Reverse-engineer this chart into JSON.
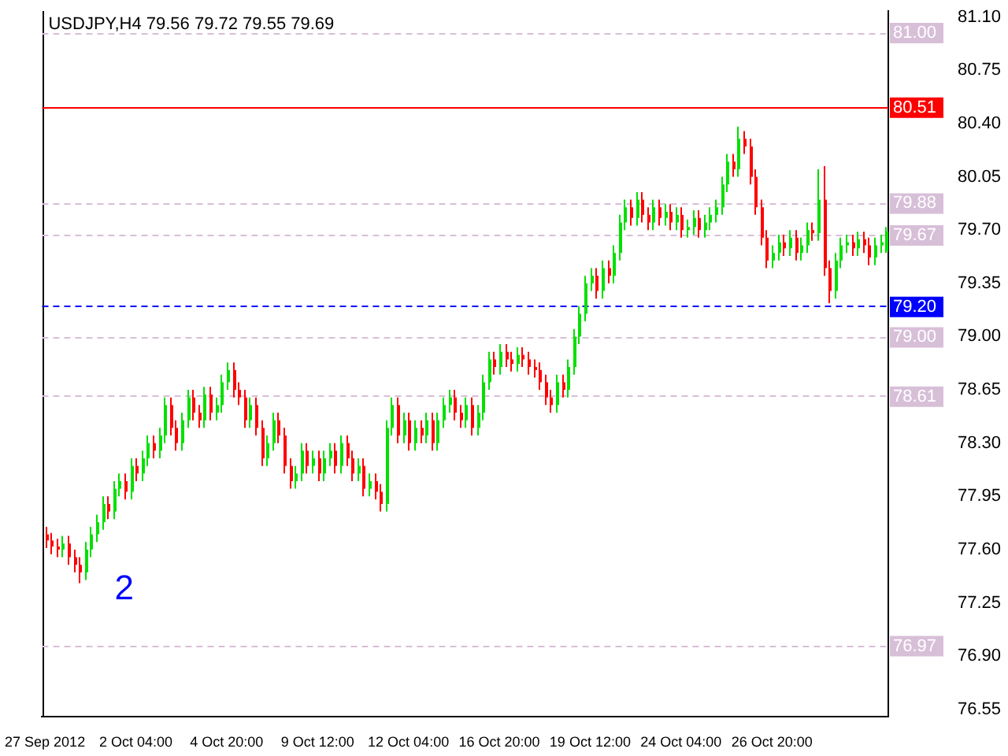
{
  "chart_data": {
    "type": "candlestick",
    "title": "USDJPY,H4 79.56 79.72 79.55 79.69",
    "annotations": [
      "2"
    ],
    "categories": [
      "27 Sep 2012",
      null,
      null,
      null,
      null,
      null,
      null,
      null,
      null,
      null,
      null,
      null,
      null,
      null,
      null,
      null,
      "2 Oct 04:00",
      null,
      null,
      null,
      null,
      null,
      null,
      null,
      null,
      null,
      null,
      null,
      null,
      null,
      null,
      null,
      "4 Oct 20:00",
      null,
      null,
      null,
      null,
      null,
      null,
      null,
      null,
      null,
      null,
      null,
      null,
      null,
      null,
      null,
      "9 Oct 12:00",
      null,
      null,
      null,
      null,
      null,
      null,
      null,
      null,
      null,
      null,
      null,
      null,
      null,
      null,
      null,
      "12 Oct 04:00",
      null,
      null,
      null,
      null,
      null,
      null,
      null,
      null,
      null,
      null,
      null,
      null,
      null,
      null,
      null,
      "16 Oct 20:00",
      null,
      null,
      null,
      null,
      null,
      null,
      null,
      null,
      null,
      null,
      null,
      null,
      null,
      null,
      null,
      "19 Oct 12:00",
      null,
      null,
      null,
      null,
      null,
      null,
      null,
      null,
      null,
      null,
      null,
      null,
      null,
      null,
      null,
      "24 Oct 04:00",
      null,
      null,
      null,
      null,
      null,
      null,
      null,
      null,
      null,
      null,
      null,
      null,
      null,
      null,
      null,
      "26 Oct 20:00",
      null,
      null,
      null,
      null,
      null,
      null,
      null,
      null,
      null,
      null,
      null,
      null,
      null,
      null,
      null,
      null,
      null,
      null,
      null,
      null
    ],
    "ohlc": [
      [
        77.7,
        77.75,
        77.61,
        77.66
      ],
      [
        77.66,
        77.71,
        77.57,
        77.62
      ],
      [
        77.62,
        77.67,
        77.55,
        77.6
      ],
      [
        77.6,
        77.69,
        77.55,
        77.64
      ],
      [
        77.64,
        77.69,
        77.5,
        77.55
      ],
      [
        77.55,
        77.6,
        77.45,
        77.5
      ],
      [
        77.5,
        77.55,
        77.38,
        77.45
      ],
      [
        77.45,
        77.65,
        77.4,
        77.6
      ],
      [
        77.6,
        77.75,
        77.55,
        77.7
      ],
      [
        77.7,
        77.83,
        77.65,
        77.78
      ],
      [
        77.78,
        77.95,
        77.73,
        77.9
      ],
      [
        77.9,
        77.95,
        77.8,
        77.85
      ],
      [
        77.85,
        78.05,
        77.8,
        78.0
      ],
      [
        78.0,
        78.1,
        77.95,
        78.05
      ],
      [
        78.05,
        78.1,
        77.93,
        77.98
      ],
      [
        77.98,
        78.2,
        77.93,
        78.15
      ],
      [
        78.15,
        78.2,
        78.05,
        78.1
      ],
      [
        78.1,
        78.25,
        78.05,
        78.2
      ],
      [
        78.2,
        78.35,
        78.15,
        78.3
      ],
      [
        78.3,
        78.35,
        78.2,
        78.25
      ],
      [
        78.25,
        78.4,
        78.2,
        78.35
      ],
      [
        78.35,
        78.6,
        78.3,
        78.55
      ],
      [
        78.55,
        78.6,
        78.35,
        78.4
      ],
      [
        78.4,
        78.45,
        78.25,
        78.3
      ],
      [
        78.3,
        78.5,
        78.25,
        78.45
      ],
      [
        78.45,
        78.65,
        78.4,
        78.6
      ],
      [
        78.6,
        78.65,
        78.45,
        78.5
      ],
      [
        78.5,
        78.55,
        78.4,
        78.45
      ],
      [
        78.45,
        78.67,
        78.4,
        78.62
      ],
      [
        78.62,
        78.67,
        78.45,
        78.5
      ],
      [
        78.5,
        78.6,
        78.45,
        78.55
      ],
      [
        78.55,
        78.75,
        78.5,
        78.7
      ],
      [
        78.7,
        78.83,
        78.65,
        78.78
      ],
      [
        78.78,
        78.83,
        78.6,
        78.65
      ],
      [
        78.65,
        78.7,
        78.55,
        78.6
      ],
      [
        78.6,
        78.65,
        78.4,
        78.45
      ],
      [
        78.45,
        78.6,
        78.4,
        78.55
      ],
      [
        78.55,
        78.6,
        78.35,
        78.4
      ],
      [
        78.4,
        78.45,
        78.15,
        78.2
      ],
      [
        78.2,
        78.35,
        78.15,
        78.3
      ],
      [
        78.3,
        78.5,
        78.25,
        78.45
      ],
      [
        78.45,
        78.5,
        78.3,
        78.35
      ],
      [
        78.35,
        78.4,
        78.1,
        78.15
      ],
      [
        78.15,
        78.2,
        78.0,
        78.05
      ],
      [
        78.05,
        78.15,
        78.0,
        78.1
      ],
      [
        78.1,
        78.3,
        78.05,
        78.25
      ],
      [
        78.25,
        78.3,
        78.1,
        78.15
      ],
      [
        78.15,
        78.25,
        78.1,
        78.2
      ],
      [
        78.2,
        78.25,
        78.05,
        78.1
      ],
      [
        78.1,
        78.25,
        78.05,
        78.2
      ],
      [
        78.2,
        78.3,
        78.15,
        78.25
      ],
      [
        78.25,
        78.3,
        78.1,
        78.15
      ],
      [
        78.15,
        78.35,
        78.1,
        78.3
      ],
      [
        78.3,
        78.35,
        78.15,
        78.2
      ],
      [
        78.2,
        78.25,
        78.05,
        78.1
      ],
      [
        78.1,
        78.2,
        78.05,
        78.15
      ],
      [
        78.15,
        78.2,
        77.95,
        78.0
      ],
      [
        78.0,
        78.1,
        77.95,
        78.05
      ],
      [
        78.05,
        78.1,
        77.93,
        77.98
      ],
      [
        77.98,
        78.03,
        77.85,
        77.9
      ],
      [
        77.9,
        78.45,
        77.85,
        78.4
      ],
      [
        78.4,
        78.6,
        78.35,
        78.55
      ],
      [
        78.55,
        78.6,
        78.3,
        78.35
      ],
      [
        78.35,
        78.5,
        78.3,
        78.45
      ],
      [
        78.45,
        78.5,
        78.25,
        78.3
      ],
      [
        78.3,
        78.45,
        78.25,
        78.4
      ],
      [
        78.4,
        78.45,
        78.3,
        78.35
      ],
      [
        78.35,
        78.5,
        78.3,
        78.45
      ],
      [
        78.45,
        78.5,
        78.25,
        78.3
      ],
      [
        78.3,
        78.5,
        78.25,
        78.45
      ],
      [
        78.45,
        78.6,
        78.4,
        78.55
      ],
      [
        78.55,
        78.65,
        78.5,
        78.6
      ],
      [
        78.6,
        78.65,
        78.45,
        78.5
      ],
      [
        78.5,
        78.55,
        78.4,
        78.45
      ],
      [
        78.45,
        78.6,
        78.4,
        78.55
      ],
      [
        78.55,
        78.6,
        78.35,
        78.4
      ],
      [
        78.4,
        78.55,
        78.35,
        78.5
      ],
      [
        78.5,
        78.75,
        78.45,
        78.7
      ],
      [
        78.7,
        78.9,
        78.65,
        78.85
      ],
      [
        78.85,
        78.9,
        78.75,
        78.8
      ],
      [
        78.8,
        78.95,
        78.75,
        78.9
      ],
      [
        78.9,
        78.95,
        78.8,
        78.85
      ],
      [
        78.85,
        78.9,
        78.77,
        78.82
      ],
      [
        78.82,
        78.93,
        78.77,
        78.88
      ],
      [
        78.88,
        78.93,
        78.8,
        78.85
      ],
      [
        78.85,
        78.9,
        78.75,
        78.8
      ],
      [
        78.8,
        78.85,
        78.73,
        78.78
      ],
      [
        78.78,
        78.83,
        78.65,
        78.7
      ],
      [
        78.7,
        78.75,
        78.55,
        78.6
      ],
      [
        78.6,
        78.65,
        78.5,
        78.55
      ],
      [
        78.55,
        78.75,
        78.5,
        78.7
      ],
      [
        78.7,
        78.75,
        78.6,
        78.65
      ],
      [
        78.65,
        78.85,
        78.6,
        78.8
      ],
      [
        78.8,
        79.05,
        78.75,
        79.0
      ],
      [
        79.0,
        79.2,
        78.95,
        79.15
      ],
      [
        79.15,
        79.4,
        79.1,
        79.35
      ],
      [
        79.35,
        79.45,
        79.3,
        79.4
      ],
      [
        79.4,
        79.45,
        79.25,
        79.3
      ],
      [
        79.3,
        79.5,
        79.25,
        79.45
      ],
      [
        79.45,
        79.5,
        79.35,
        79.4
      ],
      [
        79.4,
        79.6,
        79.35,
        79.55
      ],
      [
        79.55,
        79.8,
        79.5,
        79.75
      ],
      [
        79.75,
        79.9,
        79.7,
        79.85
      ],
      [
        79.85,
        79.9,
        79.73,
        79.78
      ],
      [
        79.78,
        79.95,
        79.73,
        79.9
      ],
      [
        79.9,
        79.95,
        79.75,
        79.8
      ],
      [
        79.8,
        79.85,
        79.7,
        79.75
      ],
      [
        79.75,
        79.9,
        79.7,
        79.85
      ],
      [
        79.85,
        79.9,
        79.73,
        79.78
      ],
      [
        79.78,
        79.87,
        79.73,
        79.82
      ],
      [
        79.82,
        79.87,
        79.7,
        79.75
      ],
      [
        79.75,
        79.85,
        79.7,
        79.8
      ],
      [
        79.8,
        79.85,
        79.65,
        79.7
      ],
      [
        79.7,
        79.77,
        79.65,
        79.72
      ],
      [
        79.72,
        79.83,
        79.67,
        79.78
      ],
      [
        79.78,
        79.83,
        79.65,
        79.7
      ],
      [
        79.7,
        79.8,
        79.65,
        79.75
      ],
      [
        79.75,
        79.85,
        79.7,
        79.8
      ],
      [
        79.8,
        79.9,
        79.75,
        79.85
      ],
      [
        79.85,
        80.05,
        79.8,
        80.0
      ],
      [
        80.0,
        80.2,
        79.95,
        80.15
      ],
      [
        80.15,
        80.2,
        80.05,
        80.1
      ],
      [
        80.1,
        80.38,
        80.05,
        80.3
      ],
      [
        80.3,
        80.35,
        80.2,
        80.25
      ],
      [
        80.25,
        80.3,
        80.0,
        80.05
      ],
      [
        80.05,
        80.1,
        79.8,
        79.85
      ],
      [
        79.85,
        79.9,
        79.6,
        79.65
      ],
      [
        79.65,
        79.7,
        79.45,
        79.5
      ],
      [
        79.5,
        79.6,
        79.45,
        79.55
      ],
      [
        79.55,
        79.67,
        79.5,
        79.62
      ],
      [
        79.62,
        79.67,
        79.53,
        79.58
      ],
      [
        79.58,
        79.7,
        79.53,
        79.65
      ],
      [
        79.65,
        79.7,
        79.5,
        79.55
      ],
      [
        79.55,
        79.65,
        79.5,
        79.6
      ],
      [
        79.6,
        79.75,
        79.55,
        79.7
      ],
      [
        79.7,
        79.75,
        79.63,
        79.68
      ],
      [
        79.68,
        80.1,
        79.63,
        79.9
      ],
      [
        79.9,
        80.12,
        79.4,
        79.45
      ],
      [
        79.45,
        79.5,
        79.22,
        79.3
      ],
      [
        79.3,
        79.55,
        79.25,
        79.5
      ],
      [
        79.5,
        79.65,
        79.45,
        79.6
      ],
      [
        79.6,
        79.67,
        79.55,
        79.62
      ],
      [
        79.62,
        79.67,
        79.53,
        79.58
      ],
      [
        79.58,
        79.69,
        79.53,
        79.64
      ],
      [
        79.64,
        79.69,
        79.55,
        79.6
      ],
      [
        79.6,
        79.65,
        79.47,
        79.52
      ],
      [
        79.52,
        79.65,
        79.47,
        79.6
      ],
      [
        79.6,
        79.67,
        79.55,
        79.62
      ],
      [
        79.56,
        79.72,
        79.55,
        79.69
      ]
    ],
    "ylim": [
      76.5,
      81.14
    ],
    "yticks": [
      76.55,
      {
        "value": 76.9,
        "label": "76.90"
      },
      77.25,
      {
        "value": 77.6,
        "label": "77.60"
      },
      77.95,
      {
        "value": 78.3,
        "label": "78.30"
      },
      78.65,
      {
        "value": 79.0,
        "label": "79.00"
      },
      79.35,
      {
        "value": 79.7,
        "label": "79.70"
      },
      80.05,
      {
        "value": 80.4,
        "label": "80.40"
      },
      80.75,
      {
        "value": 81.1,
        "label": "81.10"
      }
    ],
    "ref_lines": [
      {
        "axis": "y",
        "value": 81.0,
        "label": "81.00",
        "color": "#d8bfd8",
        "line_style": "dashed"
      },
      {
        "axis": "y",
        "value": 80.51,
        "label": "80.51",
        "color": "#ff0000",
        "line_style": "solid"
      },
      {
        "axis": "y",
        "value": 79.88,
        "label": "79.88",
        "color": "#d8bfd8",
        "line_style": "dashed"
      },
      {
        "axis": "y",
        "value": 79.67,
        "label": "79.67",
        "color": "#d8bfd8",
        "line_style": "dashed"
      },
      {
        "axis": "y",
        "value": 79.2,
        "label": "79.20",
        "color": "#0000ff",
        "line_style": "dashed"
      },
      {
        "axis": "y",
        "value": 79.0,
        "label": "79.00",
        "color": "#d8bfd8",
        "line_style": "dashed"
      },
      {
        "axis": "y",
        "value": 78.61,
        "label": "78.61",
        "color": "#d8bfd8",
        "line_style": "dashed"
      },
      {
        "axis": "y",
        "value": 76.97,
        "label": "76.97",
        "color": "#d8bfd8",
        "line_style": "dashed"
      }
    ],
    "grid": false
  }
}
